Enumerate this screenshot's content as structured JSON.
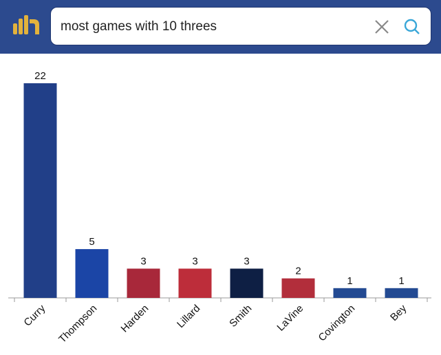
{
  "search": {
    "query": "most games with 10 threes"
  },
  "chart_data": {
    "type": "bar",
    "categories": [
      "Curry",
      "Thompson",
      "Harden",
      "Lillard",
      "Smith",
      "LaVine",
      "Covington",
      "Bey"
    ],
    "values": [
      22,
      5,
      3,
      3,
      3,
      2,
      1,
      1
    ],
    "colors": [
      "#213f88",
      "#1b45a6",
      "#a8283a",
      "#bd2d3a",
      "#0e1f44",
      "#b22e3b",
      "#234a92",
      "#234a92"
    ]
  }
}
